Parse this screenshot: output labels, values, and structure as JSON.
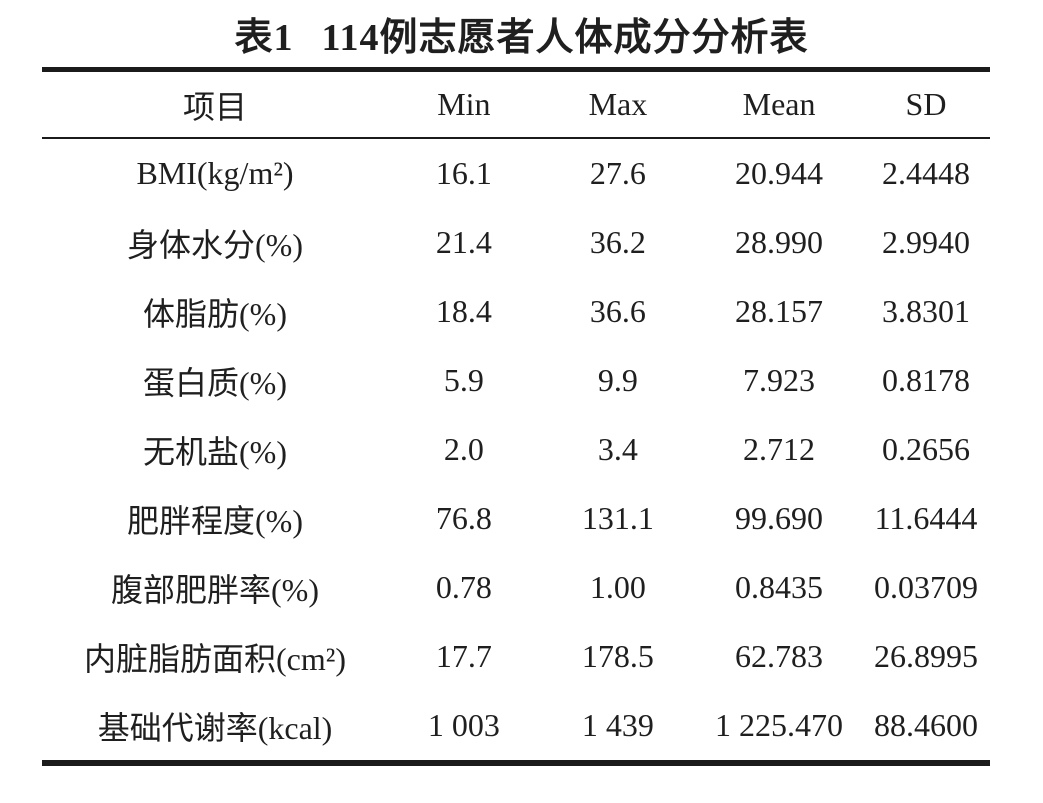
{
  "table": {
    "title_index": "表1",
    "title_text": "114例志愿者人体成分分析表",
    "columns": [
      "项目",
      "Min",
      "Max",
      "Mean",
      "SD"
    ],
    "rows": [
      {
        "item": "BMI(kg/m²)",
        "min": "16.1",
        "max": "27.6",
        "mean": "20.944",
        "sd": "2.4448"
      },
      {
        "item": "身体水分(%)",
        "min": "21.4",
        "max": "36.2",
        "mean": "28.990",
        "sd": "2.9940"
      },
      {
        "item": "体脂肪(%)",
        "min": "18.4",
        "max": "36.6",
        "mean": "28.157",
        "sd": "3.8301"
      },
      {
        "item": "蛋白质(%)",
        "min": "5.9",
        "max": "9.9",
        "mean": "7.923",
        "sd": "0.8178"
      },
      {
        "item": "无机盐(%)",
        "min": "2.0",
        "max": "3.4",
        "mean": "2.712",
        "sd": "0.2656"
      },
      {
        "item": "肥胖程度(%)",
        "min": "76.8",
        "max": "131.1",
        "mean": "99.690",
        "sd": "11.6444"
      },
      {
        "item": "腹部肥胖率(%)",
        "min": "0.78",
        "max": "1.00",
        "mean": "0.8435",
        "sd": "0.03709"
      },
      {
        "item": "内脏脂肪面积(cm²)",
        "min": "17.7",
        "max": "178.5",
        "mean": "62.783",
        "sd": "26.8995"
      },
      {
        "item": "基础代谢率(kcal)",
        "min": "1 003",
        "max": "1 439",
        "mean": "1 225.470",
        "sd": "88.4600"
      }
    ]
  }
}
